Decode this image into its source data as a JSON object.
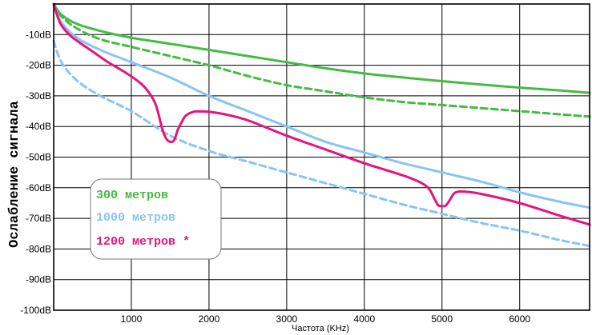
{
  "chart_data": {
    "type": "line",
    "xlabel": "Частота (KHz)",
    "ylabel": "Ослабление сигнала",
    "xlim": [
      0,
      6900
    ],
    "ylim": [
      -100,
      0
    ],
    "x_ticks": [
      "1000",
      "2000",
      "3000",
      "4000",
      "5000",
      "6000"
    ],
    "y_ticks": [
      "-10dB",
      "-20dB",
      "-30dB",
      "-40dB",
      "-50dB",
      "-60dB",
      "-70dB",
      "-80dB",
      "-90dB",
      "-100dB"
    ],
    "grid": true,
    "legend": {
      "placement": "bottom-left",
      "entries": [
        {
          "label": "300 метров",
          "color": "#44bb44"
        },
        {
          "label": "1000 метров",
          "color": "#88c4f4"
        },
        {
          "label": "1200 метров *",
          "color": "#e8147a"
        }
      ]
    },
    "series": [
      {
        "color": "#44bb44",
        "dash": false,
        "x": [
          0,
          100,
          300,
          600,
          1000,
          1500,
          2000,
          2500,
          3000,
          3500,
          4000,
          4500,
          5000,
          5500,
          6000,
          6500,
          6900
        ],
        "y": [
          0,
          -3.5,
          -6.5,
          -8.8,
          -11,
          -13,
          -15,
          -17,
          -19,
          -21,
          -22.7,
          -24,
          -25.2,
          -26.3,
          -27.3,
          -28.2,
          -29
        ]
      },
      {
        "color": "#44bb44",
        "dash": true,
        "x": [
          0,
          100,
          300,
          600,
          1000,
          1500,
          2000,
          2500,
          3000,
          3500,
          4000,
          4500,
          5000,
          5500,
          6000,
          6500,
          6900
        ],
        "y": [
          0,
          -4,
          -8,
          -11.5,
          -14,
          -17,
          -20,
          -23.5,
          -26.5,
          -28.5,
          -30.5,
          -32,
          -33,
          -34,
          -35,
          -36,
          -36.8
        ]
      },
      {
        "color": "#88c4f4",
        "dash": false,
        "x": [
          0,
          100,
          300,
          600,
          1000,
          1500,
          2000,
          2500,
          3000,
          3500,
          4000,
          4500,
          5000,
          5500,
          6000,
          6500,
          6900
        ],
        "y": [
          0,
          -6,
          -11,
          -15,
          -19,
          -24,
          -30,
          -35,
          -40,
          -45,
          -48.5,
          -52,
          -55,
          -58,
          -61.5,
          -64.5,
          -66.5
        ]
      },
      {
        "color": "#88c4f4",
        "dash": true,
        "x": [
          0,
          100,
          300,
          600,
          1000,
          1500,
          2000,
          2500,
          3000,
          3500,
          4000,
          4500,
          5000,
          5500,
          6000,
          6500,
          6900
        ],
        "y": [
          -12,
          -19,
          -25,
          -30,
          -35,
          -43,
          -48,
          -51.5,
          -55,
          -58.5,
          -62,
          -65.5,
          -68.5,
          -71.5,
          -74,
          -77,
          -79
        ]
      },
      {
        "color": "#e8147a",
        "dash": false,
        "x": [
          0,
          50,
          100,
          200,
          300,
          500,
          700,
          900,
          1100,
          1200,
          1300,
          1350,
          1400,
          1450,
          1500,
          1550,
          1600,
          1650,
          1700,
          1800,
          1900,
          2000,
          2200,
          2500,
          3000,
          3500,
          4000,
          4500,
          4700,
          4800,
          4850,
          4900,
          4950,
          5000,
          5050,
          5100,
          5150,
          5200,
          5300,
          5500,
          6000,
          6500,
          6900
        ],
        "y": [
          0,
          -4,
          -7,
          -10,
          -12,
          -15.5,
          -19,
          -22,
          -25.5,
          -28,
          -32,
          -36,
          -41,
          -44,
          -45,
          -44.5,
          -41,
          -38.5,
          -36.5,
          -35.2,
          -35.1,
          -35.2,
          -36,
          -38,
          -43,
          -47.5,
          -52,
          -56,
          -58,
          -59.5,
          -61,
          -63.5,
          -65.7,
          -66,
          -65.8,
          -64,
          -62,
          -61.3,
          -61.3,
          -62,
          -65,
          -69,
          -72
        ]
      }
    ]
  }
}
